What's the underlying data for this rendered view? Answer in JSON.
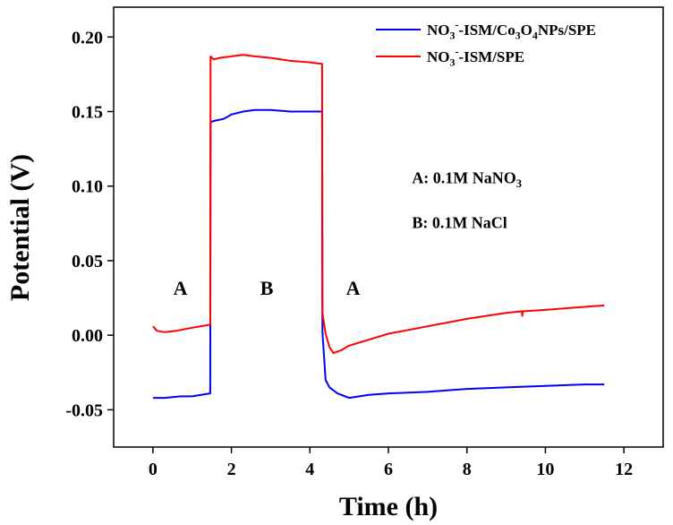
{
  "chart_data": {
    "type": "line",
    "title": "",
    "xlabel": "Time (h)",
    "ylabel": "Potential (V)",
    "xlim": [
      -1,
      13
    ],
    "ylim": [
      -0.075,
      0.22
    ],
    "xticks": [
      0,
      2,
      4,
      6,
      8,
      10,
      12
    ],
    "xtick_labels": [
      "0",
      "2",
      "4",
      "6",
      "8",
      "10",
      "12"
    ],
    "yticks": [
      -0.05,
      0.0,
      0.05,
      0.1,
      0.15,
      0.2
    ],
    "ytick_labels": [
      "-0.05",
      "0.00",
      "0.05",
      "0.10",
      "0.15",
      "0.20"
    ],
    "grid": false,
    "legend_position": "top-right",
    "series": [
      {
        "name": "NO3⁻-ISM/Co3O4NPs/SPE",
        "legend_parts": [
          {
            "t": "NO",
            "s": ""
          },
          {
            "t": "3",
            "s": "sub"
          },
          {
            "t": "-",
            "s": "sup"
          },
          {
            "t": "-ISM/Co",
            "s": ""
          },
          {
            "t": "3",
            "s": "sub"
          },
          {
            "t": "O",
            "s": ""
          },
          {
            "t": "4",
            "s": "sub"
          },
          {
            "t": "NPs/SPE",
            "s": ""
          }
        ],
        "color": "#0000ff",
        "x": [
          0,
          0.3,
          0.7,
          1.0,
          1.45,
          1.46,
          1.47,
          1.6,
          1.8,
          2.0,
          2.3,
          2.6,
          3.0,
          3.5,
          4.0,
          4.3,
          4.31,
          4.32,
          4.4,
          4.5,
          4.7,
          5.0,
          5.5,
          6.0,
          7.0,
          8.0,
          9.0,
          10.0,
          11.0,
          11.5
        ],
        "y": [
          -0.042,
          -0.042,
          -0.041,
          -0.041,
          -0.039,
          -0.039,
          0.143,
          0.144,
          0.145,
          0.148,
          0.15,
          0.151,
          0.151,
          0.15,
          0.15,
          0.15,
          0.15,
          0.002,
          -0.03,
          -0.035,
          -0.039,
          -0.042,
          -0.04,
          -0.039,
          -0.038,
          -0.036,
          -0.035,
          -0.034,
          -0.033,
          -0.033
        ]
      },
      {
        "name": "NO3⁻-ISM/SPE",
        "legend_parts": [
          {
            "t": "NO",
            "s": ""
          },
          {
            "t": "3",
            "s": "sub"
          },
          {
            "t": "-",
            "s": "sup"
          },
          {
            "t": "-ISM/SPE",
            "s": ""
          }
        ],
        "color": "#ff0000",
        "x": [
          0,
          0.1,
          0.3,
          0.6,
          1.0,
          1.45,
          1.46,
          1.47,
          1.55,
          1.7,
          2.0,
          2.3,
          2.6,
          3.0,
          3.5,
          4.0,
          4.3,
          4.31,
          4.32,
          4.4,
          4.5,
          4.6,
          4.8,
          5.0,
          5.5,
          6.0,
          7.0,
          8.0,
          9.0,
          9.4,
          9.41,
          9.42,
          10.0,
          11.0,
          11.5
        ],
        "y": [
          0.006,
          0.003,
          0.002,
          0.003,
          0.005,
          0.007,
          0.007,
          0.187,
          0.185,
          0.186,
          0.187,
          0.188,
          0.187,
          0.186,
          0.184,
          0.183,
          0.182,
          0.182,
          0.015,
          0.001,
          -0.008,
          -0.012,
          -0.01,
          -0.007,
          -0.003,
          0.001,
          0.006,
          0.011,
          0.015,
          0.016,
          0.013,
          0.016,
          0.017,
          0.019,
          0.02
        ]
      }
    ],
    "annotations": {
      "line_a": {
        "prefix": "A: 0.1M NaNO",
        "sub": "3"
      },
      "line_b": "B: 0.1M NaCl",
      "region_labels": [
        {
          "text": "A",
          "x": 0.7,
          "y": 0.027
        },
        {
          "text": "B",
          "x": 2.9,
          "y": 0.027
        },
        {
          "text": "A",
          "x": 5.1,
          "y": 0.027
        }
      ],
      "anno_a_pos": {
        "x": 6.6,
        "y": 0.102
      },
      "anno_b_pos": {
        "x": 6.6,
        "y": 0.072
      }
    }
  }
}
